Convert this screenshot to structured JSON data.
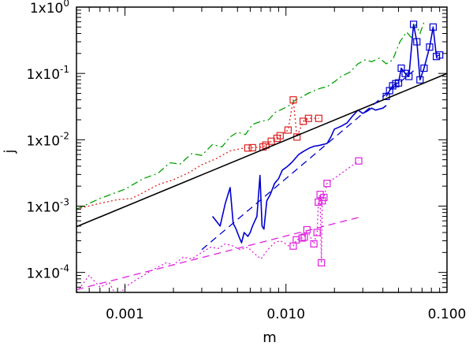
{
  "chart_data": {
    "type": "line",
    "xlabel": "m",
    "ylabel": "j",
    "xscale": "log",
    "yscale": "log",
    "xlim": [
      0.0005,
      0.1
    ],
    "ylim": [
      5e-05,
      1.0
    ],
    "grid": false,
    "x_tick_values": [
      0.001,
      0.01,
      0.1
    ],
    "x_tick_labels": [
      "0.001",
      "0.010",
      "0.100"
    ],
    "y_tick_values": [
      0.0001,
      0.001,
      0.01,
      0.1,
      1.0
    ],
    "y_tick_labels": [
      {
        "base": "1x10",
        "exp": "-4"
      },
      {
        "base": "1x10",
        "exp": "-3"
      },
      {
        "base": "1x10",
        "exp": "-2"
      },
      {
        "base": "1x10",
        "exp": "-1"
      },
      {
        "base": "1x10",
        "exp": "0"
      }
    ],
    "series": [
      {
        "color": "#00a000",
        "style": "dashdot",
        "markers": false,
        "x": [
          0.0005,
          0.0007,
          0.001,
          0.0013,
          0.0016,
          0.0019,
          0.0022,
          0.0026,
          0.003,
          0.0035,
          0.004,
          0.0045,
          0.005,
          0.0056,
          0.0062,
          0.007,
          0.0078,
          0.0086,
          0.0095,
          0.0105,
          0.0115,
          0.0125,
          0.0137,
          0.015,
          0.0165,
          0.018,
          0.02,
          0.022,
          0.025,
          0.028,
          0.031,
          0.034,
          0.038,
          0.042,
          0.046,
          0.051,
          0.056,
          0.06,
          0.064,
          0.068,
          0.072
        ],
        "y": [
          0.0009,
          0.0013,
          0.0018,
          0.0026,
          0.0031,
          0.0045,
          0.0043,
          0.0062,
          0.0058,
          0.0085,
          0.0078,
          0.011,
          0.013,
          0.012,
          0.017,
          0.019,
          0.02,
          0.026,
          0.029,
          0.033,
          0.04,
          0.044,
          0.05,
          0.055,
          0.06,
          0.063,
          0.075,
          0.09,
          0.105,
          0.14,
          0.16,
          0.15,
          0.17,
          0.14,
          0.16,
          0.3,
          0.42,
          0.35,
          0.55,
          0.4,
          0.6
        ]
      },
      {
        "color": "#e02020",
        "style": "dotted",
        "markers": false,
        "x": [
          0.0005,
          0.0007,
          0.0009,
          0.0011,
          0.0013,
          0.0016,
          0.002,
          0.0025,
          0.003,
          0.0037,
          0.0045,
          0.0055
        ],
        "y": [
          0.0009,
          0.0011,
          0.00125,
          0.0013,
          0.0016,
          0.0021,
          0.0025,
          0.0032,
          0.0042,
          0.0052,
          0.0068,
          0.0075
        ]
      },
      {
        "color": "#e02020",
        "style": "dotted",
        "markers": true,
        "x": [
          0.0058,
          0.0062,
          0.0072,
          0.0075,
          0.0081,
          0.0088,
          0.0092,
          0.0103,
          0.0111,
          0.0117,
          0.0128,
          0.0138,
          0.016
        ],
        "y": [
          0.0075,
          0.0076,
          0.0078,
          0.0083,
          0.0095,
          0.0105,
          0.0115,
          0.014,
          0.04,
          0.011,
          0.019,
          0.021,
          0.021
        ]
      },
      {
        "color": "#0000d0",
        "style": "solid",
        "markers": false,
        "x": [
          0.0035,
          0.0039,
          0.0042,
          0.0045,
          0.0047,
          0.0049,
          0.0051,
          0.0053,
          0.0055,
          0.0058,
          0.006,
          0.0062,
          0.0066,
          0.0069,
          0.0071,
          0.0073,
          0.0076,
          0.008,
          0.0085,
          0.009,
          0.0095,
          0.01,
          0.0105,
          0.011,
          0.012,
          0.013,
          0.014,
          0.015,
          0.016,
          0.017,
          0.018,
          0.019,
          0.02,
          0.022,
          0.024,
          0.026,
          0.028,
          0.03,
          0.032,
          0.034,
          0.036,
          0.038,
          0.04,
          0.042
        ],
        "y": [
          0.0007,
          0.0005,
          0.0011,
          0.0019,
          0.00055,
          0.00045,
          0.00035,
          0.00028,
          0.0004,
          0.00035,
          0.0004,
          0.0005,
          0.0007,
          0.0029,
          0.0005,
          0.00045,
          0.0012,
          0.0015,
          0.0022,
          0.0026,
          0.0035,
          0.0038,
          0.0042,
          0.0047,
          0.006,
          0.0068,
          0.0075,
          0.008,
          0.0082,
          0.0085,
          0.0088,
          0.011,
          0.0145,
          0.016,
          0.018,
          0.023,
          0.028,
          0.025,
          0.027,
          0.03,
          0.028,
          0.029,
          0.03,
          0.033
        ]
      },
      {
        "color": "#0000d0",
        "style": "solid",
        "markers": true,
        "x": [
          0.042,
          0.044,
          0.046,
          0.048,
          0.05,
          0.052,
          0.055,
          0.058,
          0.062,
          0.065,
          0.068,
          0.072,
          0.078,
          0.082,
          0.086,
          0.09
        ],
        "y": [
          0.045,
          0.055,
          0.065,
          0.07,
          0.072,
          0.12,
          0.1,
          0.09,
          0.55,
          0.3,
          0.08,
          0.12,
          0.25,
          0.5,
          0.18,
          0.19
        ]
      },
      {
        "color": "#e020e0",
        "style": "dotted",
        "markers": false,
        "x": [
          0.0005,
          0.0006,
          0.0007,
          0.0008,
          0.0009,
          0.001,
          0.0012,
          0.0014,
          0.0016,
          0.0018,
          0.002,
          0.0023,
          0.0026,
          0.003,
          0.0034,
          0.0038,
          0.0042,
          0.0047,
          0.0052,
          0.0058,
          0.0064,
          0.007,
          0.0077,
          0.0085,
          0.0092,
          0.01,
          0.0107
        ],
        "y": [
          5e-05,
          9e-05,
          6e-05,
          7e-05,
          4e-05,
          6e-05,
          8e-05,
          0.0001,
          0.00012,
          0.00014,
          0.00013,
          0.00017,
          0.00016,
          0.0002,
          0.00024,
          0.00023,
          0.00027,
          0.00025,
          0.00022,
          0.00024,
          0.00019,
          0.00016,
          0.00022,
          0.00028,
          0.0003,
          0.00027,
          0.00024
        ]
      },
      {
        "color": "#e020e0",
        "style": "dotted",
        "markers": true,
        "x": [
          0.0111,
          0.0116,
          0.0126,
          0.013,
          0.0135,
          0.0149,
          0.0156,
          0.0159,
          0.0163,
          0.0166,
          0.0168,
          0.0172,
          0.018,
          0.0283
        ],
        "y": [
          0.00025,
          0.00031,
          0.00033,
          0.00034,
          0.00044,
          0.00027,
          0.0004,
          0.00115,
          0.0015,
          0.00014,
          0.0012,
          0.00135,
          0.0022,
          0.0048
        ]
      },
      {
        "color": "#000000",
        "style": "solid",
        "markers": false,
        "x": [
          0.0005,
          0.1
        ],
        "y": [
          0.00049,
          0.0995
        ]
      },
      {
        "color": "#0000d0",
        "style": "dashed",
        "markers": false,
        "x": [
          0.003,
          0.062
        ],
        "y": [
          0.00022,
          0.11
        ]
      },
      {
        "color": "#e020e0",
        "style": "dashed",
        "markers": false,
        "x": [
          0.0005,
          0.03
        ],
        "y": [
          5.5e-05,
          0.0007
        ]
      }
    ]
  }
}
